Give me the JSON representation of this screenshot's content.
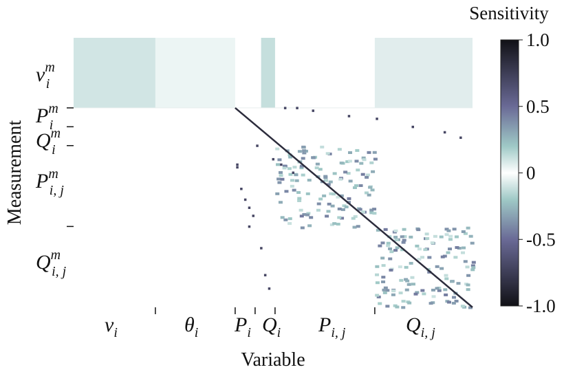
{
  "chart_data": {
    "type": "heatmap",
    "title": "",
    "xlabel": "Variable",
    "ylabel": "Measurement",
    "colorbar": {
      "title": "Sensitivity",
      "range": [
        -1.0,
        1.0
      ],
      "ticks": [
        "1.0",
        "0.5",
        "0",
        "-0.5",
        "-1.0"
      ],
      "colormap": "bone-like diverging (black / navy / teal / white)"
    },
    "x_groups": [
      {
        "base": "v",
        "sub": "i",
        "sup": "",
        "range": [
          0.0,
          0.205
        ]
      },
      {
        "base": "θ",
        "sub": "i",
        "sup": "",
        "range": [
          0.205,
          0.405
        ]
      },
      {
        "base": "P",
        "sub": "i",
        "sup": "",
        "range": [
          0.405,
          0.455
        ]
      },
      {
        "base": "Q",
        "sub": "i",
        "sup": "",
        "range": [
          0.455,
          0.505
        ]
      },
      {
        "base": "P",
        "sub": "i, j",
        "sup": "",
        "range": [
          0.505,
          0.755
        ]
      },
      {
        "base": "Q",
        "sub": "i, j",
        "sup": "",
        "range": [
          0.755,
          1.0
        ]
      }
    ],
    "y_groups": [
      {
        "base": "v",
        "sub": "i",
        "sup": "m",
        "range": [
          0.0,
          0.26
        ]
      },
      {
        "base": "P",
        "sub": "i",
        "sup": "m",
        "range": [
          0.26,
          0.33
        ]
      },
      {
        "base": "Q",
        "sub": "i",
        "sup": "m",
        "range": [
          0.33,
          0.4
        ]
      },
      {
        "base": "P",
        "sub": "i, j",
        "sup": "m",
        "range": [
          0.4,
          0.7
        ]
      },
      {
        "base": "Q",
        "sub": "i, j",
        "sup": "m",
        "range": [
          0.7,
          1.0
        ]
      }
    ],
    "pattern": {
      "vm_block_value": 0.12,
      "diagonal_value": -0.85,
      "offdiag_block_value": 0.35,
      "grid_on": false
    }
  }
}
